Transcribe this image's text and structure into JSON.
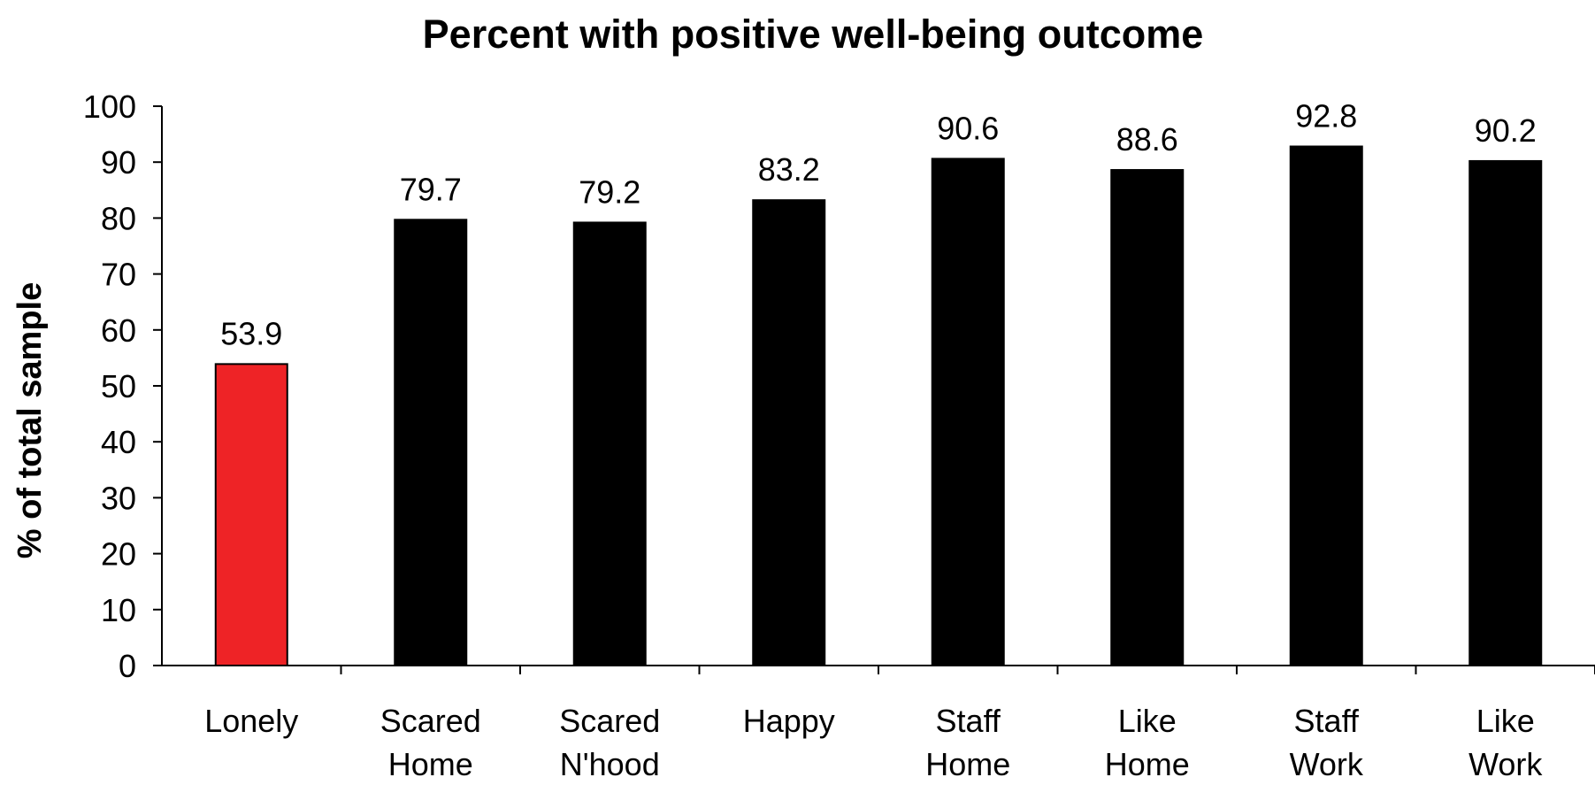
{
  "chart_data": {
    "type": "bar",
    "title": "Percent with positive well-being outcome",
    "ylabel": "% of total sample",
    "xlabel": "",
    "ylim": [
      0,
      100
    ],
    "ytick_step": 10,
    "yticks": [
      "0",
      "10",
      "20",
      "30",
      "40",
      "50",
      "60",
      "70",
      "80",
      "90",
      "100"
    ],
    "grid": false,
    "legend": "none",
    "categories": [
      [
        "Lonely"
      ],
      [
        "Scared",
        "Home"
      ],
      [
        "Scared",
        "N'hood"
      ],
      [
        "Happy"
      ],
      [
        "Staff",
        "Home"
      ],
      [
        "Like",
        "Home"
      ],
      [
        "Staff",
        "Work"
      ],
      [
        "Like",
        "Work"
      ]
    ],
    "values": [
      53.9,
      79.7,
      79.2,
      83.2,
      90.6,
      88.6,
      92.8,
      90.2
    ],
    "value_labels": [
      "53.9",
      "79.7",
      "79.2",
      "83.2",
      "90.6",
      "88.6",
      "92.8",
      "90.2"
    ],
    "colors": [
      "#ee2326",
      "#000000",
      "#000000",
      "#000000",
      "#000000",
      "#000000",
      "#000000",
      "#000000"
    ]
  }
}
